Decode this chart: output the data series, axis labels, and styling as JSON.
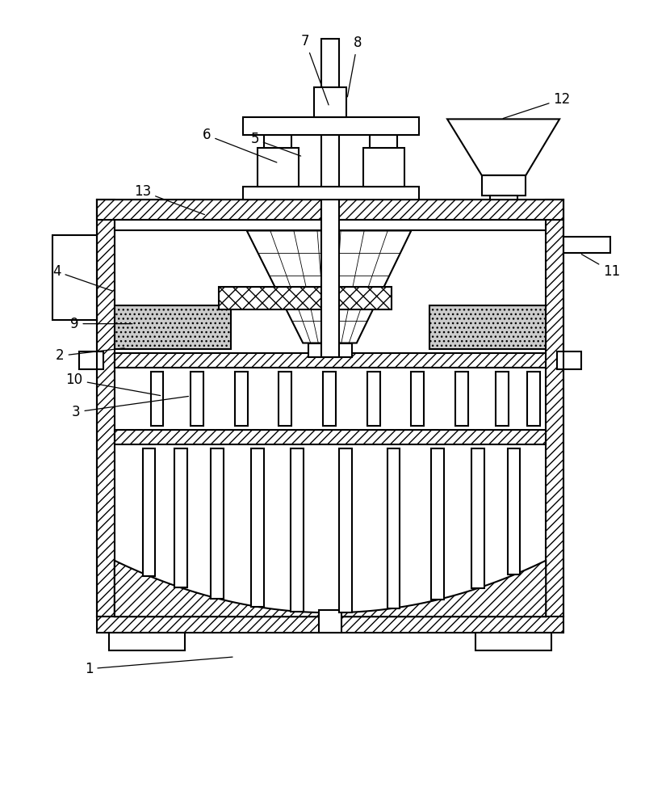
{
  "bg_color": "#ffffff",
  "line_color": "#000000",
  "fig_width": 8.25,
  "fig_height": 10.0
}
